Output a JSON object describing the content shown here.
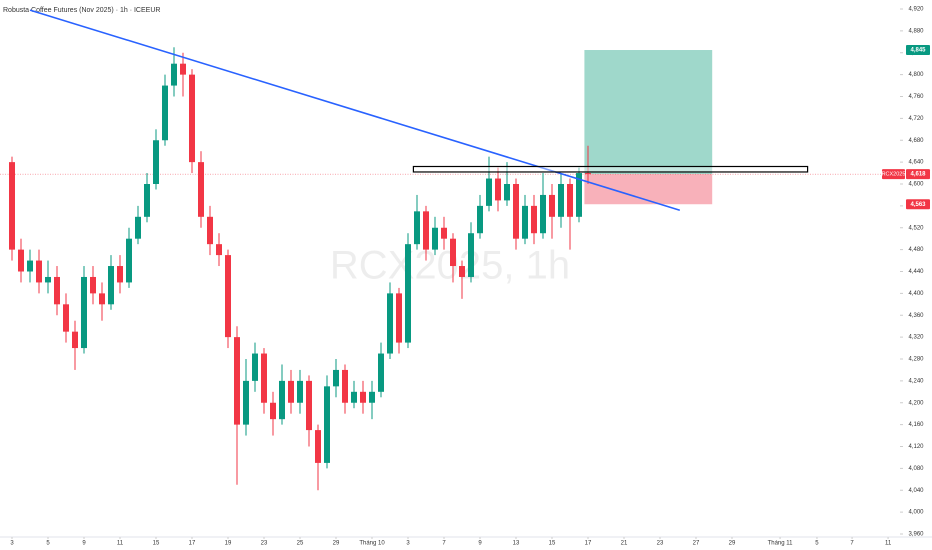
{
  "chart_data": {
    "type": "candlestick",
    "title": "Robusta Coffee Futures (Nov 2025) · 1h · ICEEUR",
    "watermark": "RCX2025, 1h",
    "up_color": "#089981",
    "down_color": "#f23645",
    "x": [
      0,
      0.5,
      1,
      1.5,
      2,
      2.5,
      3,
      3.5,
      4,
      4.5,
      5,
      5.5,
      6,
      6.5,
      7,
      7.5,
      8,
      8.5,
      9,
      9.5,
      10,
      10.5,
      11,
      11.5,
      12,
      12.5,
      13,
      13.5,
      14,
      14.5,
      15,
      15.5,
      16,
      16.5,
      17,
      17.5,
      18,
      18.5,
      19,
      19.5,
      20,
      20.5,
      21,
      21.5,
      22,
      22.5,
      23,
      23.5,
      24,
      24.5,
      25,
      25.5,
      26,
      26.5,
      27,
      27.5,
      28,
      28.5,
      29,
      29.5,
      30,
      30.5,
      31,
      31.5,
      32
    ],
    "open": [
      4640,
      4480,
      4440,
      4460,
      4420,
      4430,
      4380,
      4330,
      4300,
      4430,
      4400,
      4380,
      4450,
      4420,
      4500,
      4540,
      4600,
      4680,
      4780,
      4820,
      4800,
      4640,
      4540,
      4490,
      4470,
      4320,
      4160,
      4240,
      4290,
      4200,
      4170,
      4240,
      4200,
      4240,
      4150,
      4090,
      4230,
      4260,
      4200,
      4220,
      4200,
      4220,
      4290,
      4400,
      4310,
      4490,
      4550,
      4480,
      4520,
      4500,
      4450,
      4430,
      4510,
      4560,
      4610,
      4570,
      4600,
      4500,
      4560,
      4510,
      4580,
      4540,
      4600,
      4540,
      4620
    ],
    "high": [
      4650,
      4500,
      4480,
      4480,
      4460,
      4450,
      4400,
      4350,
      4450,
      4450,
      4420,
      4470,
      4470,
      4520,
      4560,
      4620,
      4700,
      4800,
      4850,
      4840,
      4810,
      4660,
      4560,
      4510,
      4480,
      4340,
      4280,
      4310,
      4300,
      4220,
      4270,
      4260,
      4260,
      4250,
      4160,
      4250,
      4280,
      4270,
      4240,
      4240,
      4240,
      4310,
      4420,
      4410,
      4510,
      4580,
      4560,
      4540,
      4540,
      4510,
      4460,
      4530,
      4580,
      4650,
      4630,
      4640,
      4610,
      4580,
      4580,
      4620,
      4600,
      4620,
      4610,
      4630,
      4670
    ],
    "low": [
      4460,
      4420,
      4420,
      4400,
      4400,
      4360,
      4310,
      4260,
      4290,
      4380,
      4350,
      4370,
      4400,
      4410,
      4490,
      4530,
      4590,
      4670,
      4760,
      4760,
      4620,
      4520,
      4470,
      4450,
      4300,
      4050,
      4140,
      4220,
      4180,
      4140,
      4160,
      4180,
      4180,
      4120,
      4040,
      4080,
      4210,
      4180,
      4190,
      4180,
      4170,
      4210,
      4280,
      4290,
      4300,
      4480,
      4460,
      4470,
      4480,
      4420,
      4390,
      4420,
      4500,
      4550,
      4550,
      4560,
      4480,
      4490,
      4490,
      4500,
      4500,
      4520,
      4480,
      4530,
      4600
    ],
    "close": [
      4480,
      4440,
      4460,
      4420,
      4430,
      4380,
      4330,
      4300,
      4430,
      4400,
      4380,
      4450,
      4420,
      4500,
      4540,
      4600,
      4680,
      4780,
      4820,
      4800,
      4640,
      4540,
      4490,
      4470,
      4320,
      4160,
      4240,
      4290,
      4200,
      4170,
      4240,
      4200,
      4240,
      4150,
      4090,
      4230,
      4260,
      4200,
      4220,
      4200,
      4220,
      4290,
      4400,
      4310,
      4490,
      4550,
      4480,
      4520,
      4500,
      4450,
      4430,
      4510,
      4560,
      4610,
      4570,
      4600,
      4500,
      4560,
      4510,
      4580,
      4540,
      4600,
      4540,
      4620,
      4618
    ],
    "xlim": [
      -0.6667,
      49.3333
    ],
    "ylim": [
      3960,
      4920
    ],
    "xticks": [
      {
        "value": 0,
        "label": "3"
      },
      {
        "value": 2,
        "label": "5"
      },
      {
        "value": 4,
        "label": "9"
      },
      {
        "value": 6,
        "label": "11"
      },
      {
        "value": 8,
        "label": "15"
      },
      {
        "value": 10,
        "label": "17"
      },
      {
        "value": 12,
        "label": "19"
      },
      {
        "value": 14,
        "label": "23"
      },
      {
        "value": 16,
        "label": "25"
      },
      {
        "value": 18,
        "label": "29"
      },
      {
        "value": 20,
        "label": "Tháng 10"
      },
      {
        "value": 22,
        "label": "3"
      },
      {
        "value": 24,
        "label": "7"
      },
      {
        "value": 26,
        "label": "9"
      },
      {
        "value": 28,
        "label": "13"
      },
      {
        "value": 30,
        "label": "15"
      },
      {
        "value": 32,
        "label": "17"
      },
      {
        "value": 34,
        "label": "21"
      },
      {
        "value": 36,
        "label": "23"
      },
      {
        "value": 38,
        "label": "27"
      },
      {
        "value": 40,
        "label": "29"
      },
      {
        "value": 42.67,
        "label": "Tháng 11"
      },
      {
        "value": 44.72,
        "label": "5"
      },
      {
        "value": 46.67,
        "label": "7"
      },
      {
        "value": 48.67,
        "label": "11"
      }
    ],
    "yticks": [
      {
        "value": 3960,
        "label": "3,960"
      },
      {
        "value": 4000,
        "label": "4,000"
      },
      {
        "value": 4040,
        "label": "4,040"
      },
      {
        "value": 4080,
        "label": "4,080"
      },
      {
        "value": 4120,
        "label": "4,120"
      },
      {
        "value": 4160,
        "label": "4,160"
      },
      {
        "value": 4200,
        "label": "4,200"
      },
      {
        "value": 4240,
        "label": "4,240"
      },
      {
        "value": 4280,
        "label": "4,280"
      },
      {
        "value": 4320,
        "label": "4,320"
      },
      {
        "value": 4360,
        "label": "4,360"
      },
      {
        "value": 4400,
        "label": "4,400"
      },
      {
        "value": 4440,
        "label": "4,440"
      },
      {
        "value": 4480,
        "label": "4,480"
      },
      {
        "value": 4520,
        "label": "4,520"
      },
      {
        "value": 4560,
        "label": "4,560"
      },
      {
        "value": 4600,
        "label": "4,600"
      },
      {
        "value": 4640,
        "label": "4,640"
      },
      {
        "value": 4680,
        "label": "4,680"
      },
      {
        "value": 4720,
        "label": "4,720"
      },
      {
        "value": 4760,
        "label": "4,760"
      },
      {
        "value": 4800,
        "label": "4,800"
      },
      {
        "value": 4840,
        "label": "4,840"
      },
      {
        "value": 4880,
        "label": "4,880"
      },
      {
        "value": 4920,
        "label": "4,920"
      }
    ],
    "last_price": {
      "symbol": "RCX2025",
      "value": 4618,
      "label": "4,618",
      "color": "#f23645"
    },
    "trend_line": {
      "x": [
        1,
        37.1
      ],
      "y": [
        4918,
        4552
      ],
      "color": "#2962ff"
    },
    "zone": {
      "x": [
        22.3,
        44.2
      ],
      "y": [
        4632,
        4622
      ]
    },
    "position": {
      "x": [
        31.8,
        38.9
      ],
      "target": 4845,
      "target_label": "4,845",
      "entry": 4618,
      "stop": 4563,
      "stop_label": "4,563",
      "profit_color": "#9fd8cb",
      "loss_color": "#f8b1ba"
    }
  }
}
